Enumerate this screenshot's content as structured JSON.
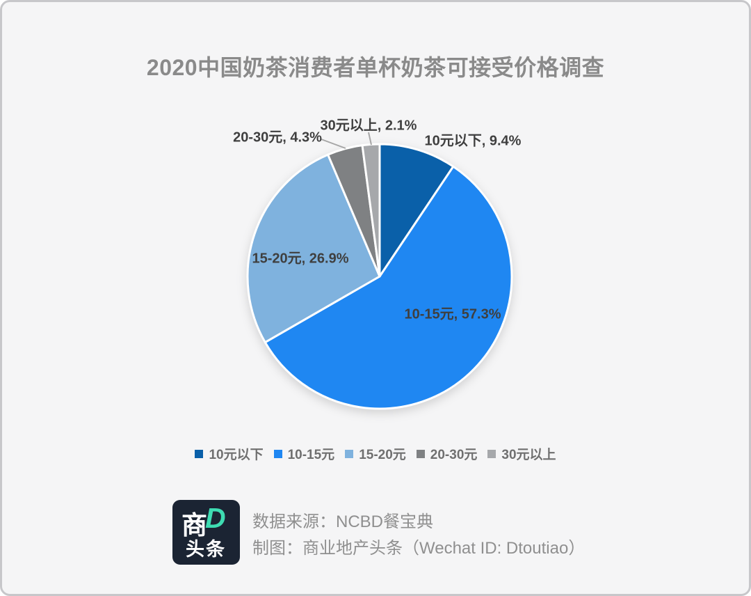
{
  "page": {
    "title": "2020中国奶茶消费者单杯奶茶可接受价格调查"
  },
  "chart_data": {
    "type": "pie",
    "title": "2020中国奶茶消费者单杯奶茶可接受价格调查",
    "start_angle_deg": 0,
    "direction": "clockwise",
    "label_format": "{label}, {value}%",
    "legend_position": "bottom",
    "slices": [
      {
        "label": "10元以下",
        "value": 9.4,
        "label_text": "10元以下, 9.4%",
        "color": "#0a60a9",
        "label_placement": "outside"
      },
      {
        "label": "10-15元",
        "value": 57.3,
        "label_text": "10-15元, 57.3%",
        "color": "#1f87f2",
        "label_placement": "inside"
      },
      {
        "label": "15-20元",
        "value": 26.9,
        "label_text": "15-20元, 26.9%",
        "color": "#7fb2de",
        "label_placement": "inside"
      },
      {
        "label": "20-30元",
        "value": 4.3,
        "label_text": "20-30元, 4.3%",
        "color": "#7f8183",
        "label_placement": "outside"
      },
      {
        "label": "30元以上",
        "value": 2.1,
        "label_text": "30元以上, 2.1%",
        "color": "#a6a8ab",
        "label_placement": "outside"
      }
    ],
    "legend_labels": [
      "10元以下",
      "10-15元",
      "15-20元",
      "20-30元",
      "30元以上"
    ]
  },
  "colors": {
    "card_background": "#f5f5f6",
    "card_border": "#c7c7ca",
    "title_text": "#8a8a8a",
    "data_label_text": "#3f3f3f",
    "legend_text": "#6f6f6f",
    "footer_text": "#8f8f8f",
    "leader_line": "#a6a6a6",
    "slice_separator": "#ffffff",
    "logo_background": "#1b2433",
    "logo_accent": "#3edcb2"
  },
  "footer": {
    "source_line": "数据来源：NCBD餐宝典",
    "credit_line": "制图：商业地产头条（Wechat ID: Dtoutiao）",
    "logo": {
      "char_top": "商",
      "char_d": "D",
      "char_bottom": "头条"
    }
  }
}
